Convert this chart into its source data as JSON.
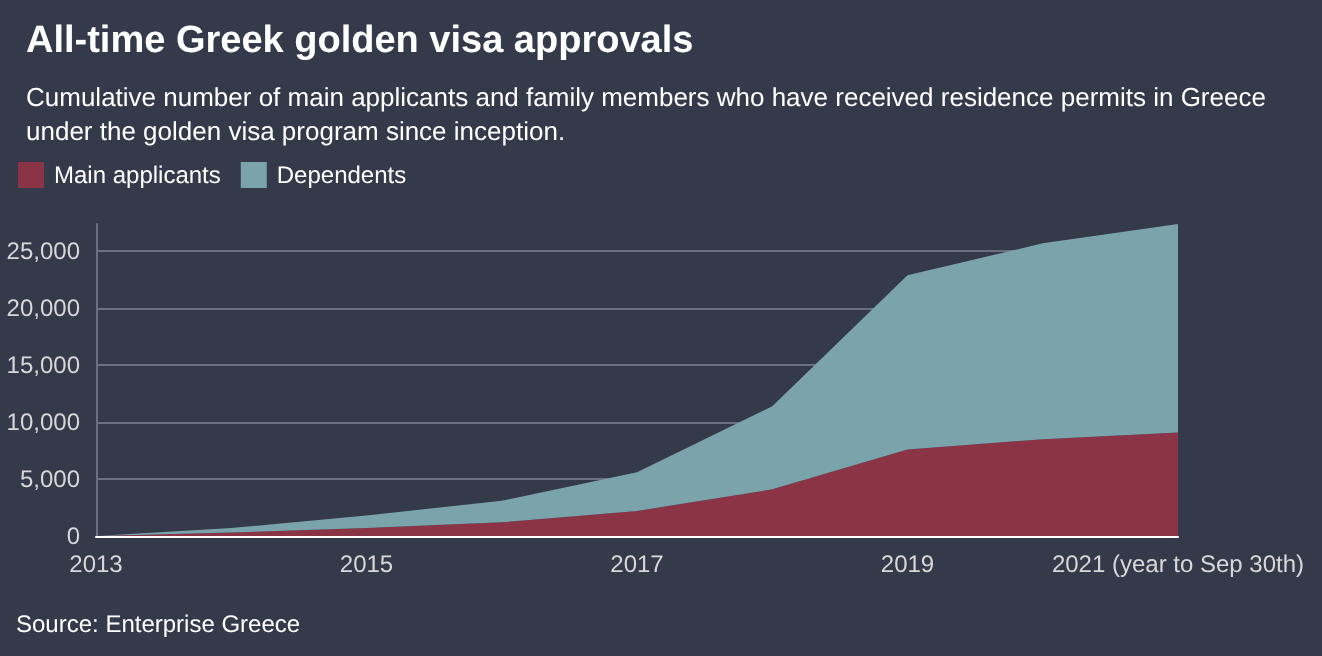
{
  "chart_data": {
    "type": "area",
    "title": "All-time Greek golden visa approvals",
    "subtitle": "Cumulative number of main applicants and family members who have received residence permits in Greece under the golden visa program since inception.",
    "categories": [
      "2013",
      null,
      "2015",
      null,
      "2017",
      null,
      "2019",
      null,
      "2021 (year to Sep 30th)"
    ],
    "stacked": true,
    "series": [
      {
        "name": "Main applicants",
        "color": "#8b3446",
        "values": [
          0,
          300,
          700,
          1200,
          2200,
          4100,
          7600,
          8500,
          9100
        ]
      },
      {
        "name": "Dependents",
        "color": "#7ba3ab",
        "values": [
          0,
          400,
          1100,
          1900,
          3400,
          7300,
          15300,
          17200,
          18300
        ]
      }
    ],
    "ylim": [
      0,
      27400
    ],
    "yticks": [
      0,
      {
        "value": 5000,
        "label": "5,000"
      },
      {
        "value": 10000,
        "label": "10,000"
      },
      {
        "value": 15000,
        "label": "15,000"
      },
      {
        "value": 20000,
        "label": "20,000"
      },
      {
        "value": 25000,
        "label": "25,000"
      }
    ],
    "grid": "y",
    "legend": "top left",
    "annotations": [
      "Source: Enterprise Greece"
    ]
  }
}
